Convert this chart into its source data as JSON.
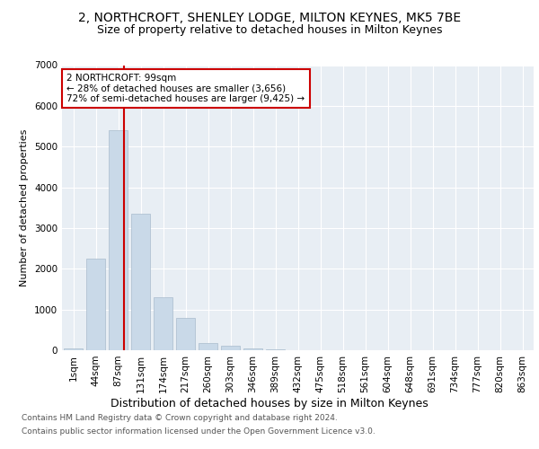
{
  "title1": "2, NORTHCROFT, SHENLEY LODGE, MILTON KEYNES, MK5 7BE",
  "title2": "Size of property relative to detached houses in Milton Keynes",
  "xlabel": "Distribution of detached houses by size in Milton Keynes",
  "ylabel": "Number of detached properties",
  "categories": [
    "1sqm",
    "44sqm",
    "87sqm",
    "131sqm",
    "174sqm",
    "217sqm",
    "260sqm",
    "303sqm",
    "346sqm",
    "389sqm",
    "432sqm",
    "475sqm",
    "518sqm",
    "561sqm",
    "604sqm",
    "648sqm",
    "691sqm",
    "734sqm",
    "777sqm",
    "820sqm",
    "863sqm"
  ],
  "values": [
    50,
    2250,
    5400,
    3350,
    1300,
    800,
    175,
    100,
    50,
    15,
    5,
    2,
    1,
    0,
    0,
    0,
    0,
    0,
    0,
    0,
    0
  ],
  "bar_color": "#c9d9e8",
  "bar_edge_color": "#aabbcc",
  "line_color": "#cc0000",
  "annotation_box_color": "#ffffff",
  "annotation_box_edge": "#cc0000",
  "annotation_line1": "2 NORTHCROFT: 99sqm",
  "annotation_line2": "← 28% of detached houses are smaller (3,656)",
  "annotation_line3": "72% of semi-detached houses are larger (9,425) →",
  "footer1": "Contains HM Land Registry data © Crown copyright and database right 2024.",
  "footer2": "Contains public sector information licensed under the Open Government Licence v3.0.",
  "ylim": [
    0,
    7000
  ],
  "yticks": [
    0,
    1000,
    2000,
    3000,
    4000,
    5000,
    6000,
    7000
  ],
  "bg_color": "#e8eef4",
  "fig_bg": "#ffffff",
  "title1_fontsize": 10,
  "title2_fontsize": 9,
  "xlabel_fontsize": 9,
  "ylabel_fontsize": 8,
  "tick_fontsize": 7.5,
  "annot_fontsize": 7.5,
  "footer_fontsize": 6.5
}
